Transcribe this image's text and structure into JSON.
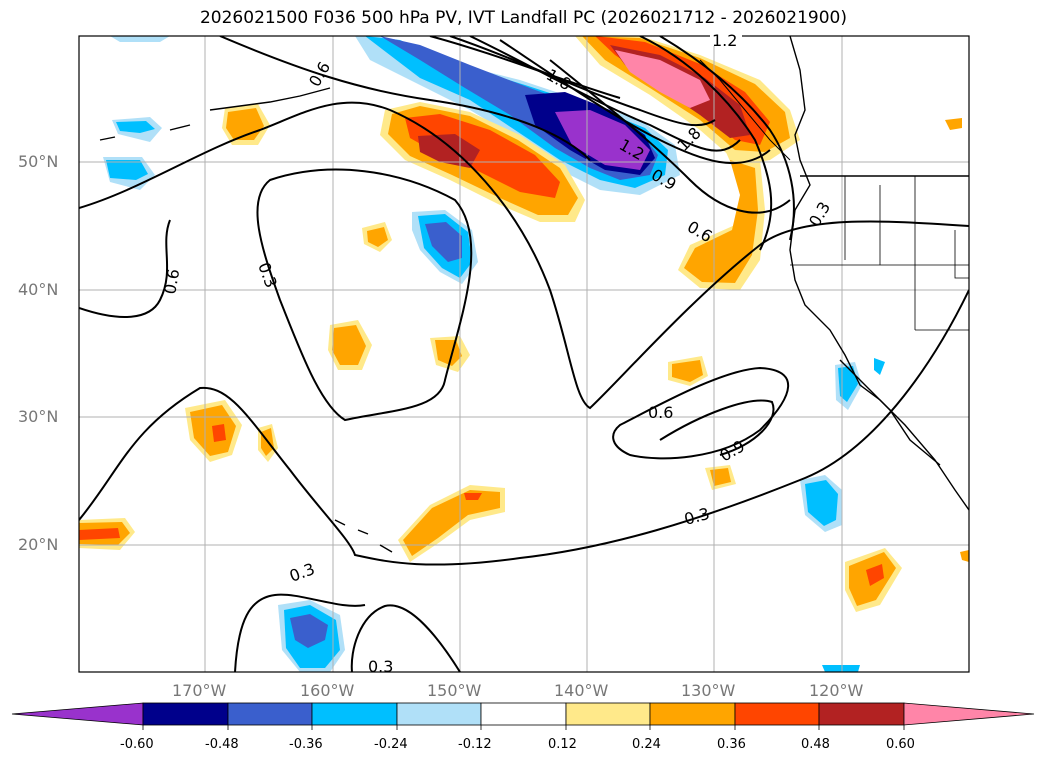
{
  "title": "2026021500 F036 500 hPa PV, IVT Landfall PC (2026021712 - 2026021900)",
  "lat_labels": [
    "50°N",
    "40°N",
    "30°N",
    "20°N"
  ],
  "lon_labels": [
    "170°W",
    "160°W",
    "150°W",
    "140°W",
    "130°W",
    "120°W"
  ],
  "contour_labels": [
    "1.2",
    "0.6",
    "0.3",
    "0.6",
    "1.8",
    "1.2",
    "0.9",
    "0.6",
    "1.8",
    "0.3",
    "0.6",
    "0.9",
    "0.3",
    "0.3",
    "0.3"
  ],
  "colorbar": {
    "ticks": [
      "-0.60",
      "-0.48",
      "-0.36",
      "-0.24",
      "-0.12",
      "0.12",
      "0.24",
      "0.36",
      "0.48",
      "0.60"
    ],
    "colors": [
      "#9932cc",
      "#00008b",
      "#3a5fcd",
      "#00bfff",
      "#b0e0f8",
      "#ffffff",
      "#ffe98a",
      "#ffa500",
      "#ff4500",
      "#b22222",
      "#ff85a8"
    ]
  }
}
